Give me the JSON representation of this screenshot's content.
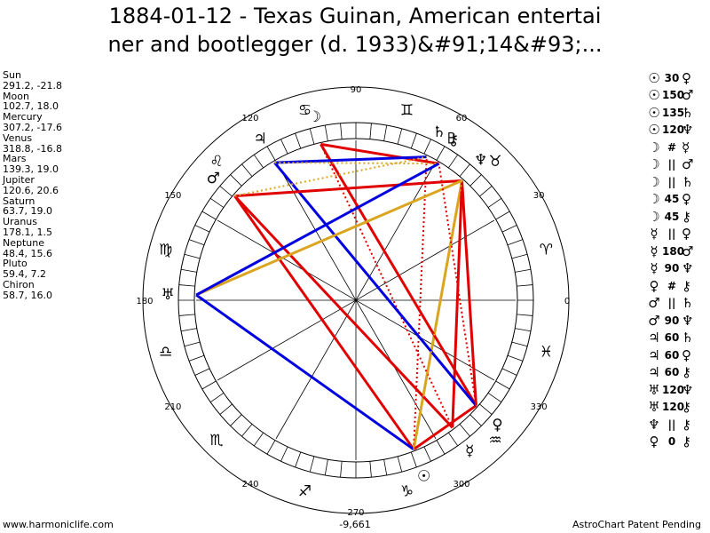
{
  "title": {
    "line1": "1884-01-12 - Texas Guinan, American entertai",
    "line2": "ner and bootlegger (d. 1933)&#91;14&#93;..."
  },
  "positions": [
    {
      "name": "Sun",
      "coords": "291.2, -21.8"
    },
    {
      "name": "Moon",
      "coords": "102.7, 18.0"
    },
    {
      "name": "Mercury",
      "coords": "307.2, -17.6"
    },
    {
      "name": "Venus",
      "coords": "318.8, -16.8"
    },
    {
      "name": "Mars",
      "coords": "139.3, 19.0"
    },
    {
      "name": "Jupiter",
      "coords": "120.6, 20.6"
    },
    {
      "name": "Saturn",
      "coords": "63.7, 19.0"
    },
    {
      "name": "Uranus",
      "coords": "178.1, 1.5"
    },
    {
      "name": "Neptune",
      "coords": "48.4, 15.6"
    },
    {
      "name": "Pluto",
      "coords": "59.4, 7.2"
    },
    {
      "name": "Chiron",
      "coords": "58.7, 16.0"
    }
  ],
  "aspects": [
    {
      "p1": "sun-icon",
      "g1": "☉",
      "type": "30",
      "g2": "♀",
      "p2": "venus-icon"
    },
    {
      "p1": "sun-icon",
      "g1": "☉",
      "type": "150",
      "g2": "♂",
      "p2": "mars-icon"
    },
    {
      "p1": "sun-icon",
      "g1": "☉",
      "type": "135",
      "g2": "♄",
      "p2": "saturn-icon"
    },
    {
      "p1": "sun-icon",
      "g1": "☉",
      "type": "120",
      "g2": "♆",
      "p2": "neptune-icon"
    },
    {
      "p1": "moon-icon",
      "g1": "☽",
      "type": "#",
      "g2": "☿",
      "p2": "mercury-icon"
    },
    {
      "p1": "moon-icon",
      "g1": "☽",
      "type": "||",
      "g2": "♂",
      "p2": "mars-icon"
    },
    {
      "p1": "moon-icon",
      "g1": "☽",
      "type": "||",
      "g2": "♄",
      "p2": "saturn-icon"
    },
    {
      "p1": "moon-icon",
      "g1": "☽",
      "type": "45",
      "g2": "♀",
      "p2": "venus-icon"
    },
    {
      "p1": "moon-icon",
      "g1": "☽",
      "type": "45",
      "g2": "⚷",
      "p2": "chiron-icon"
    },
    {
      "p1": "mercury-icon",
      "g1": "☿",
      "type": "||",
      "g2": "♀",
      "p2": "venus-icon"
    },
    {
      "p1": "mercury-icon",
      "g1": "☿",
      "type": "180",
      "g2": "♂",
      "p2": "mars-icon"
    },
    {
      "p1": "mercury-icon",
      "g1": "☿",
      "type": "90",
      "g2": "♆",
      "p2": "neptune-icon"
    },
    {
      "p1": "venus-icon",
      "g1": "♀",
      "type": "#",
      "g2": "⚷",
      "p2": "chiron-icon"
    },
    {
      "p1": "mars-icon",
      "g1": "♂",
      "type": "||",
      "g2": "♄",
      "p2": "saturn-icon"
    },
    {
      "p1": "mars-icon",
      "g1": "♂",
      "type": "90",
      "g2": "♆",
      "p2": "neptune-icon"
    },
    {
      "p1": "jupiter-icon",
      "g1": "♃",
      "type": "60",
      "g2": "♄",
      "p2": "saturn-icon"
    },
    {
      "p1": "jupiter-icon",
      "g1": "♃",
      "type": "60",
      "g2": "♀",
      "p2": "venus-icon"
    },
    {
      "p1": "jupiter-icon",
      "g1": "♃",
      "type": "60",
      "g2": "⚷",
      "p2": "chiron-icon"
    },
    {
      "p1": "uranus-icon",
      "g1": "♅",
      "type": "120",
      "g2": "♆",
      "p2": "neptune-icon"
    },
    {
      "p1": "uranus-icon",
      "g1": "♅",
      "type": "120",
      "g2": "⚷",
      "p2": "chiron-icon"
    },
    {
      "p1": "neptune-icon",
      "g1": "♆",
      "type": "||",
      "g2": "⚷",
      "p2": "chiron-icon"
    },
    {
      "p1": "venus-icon",
      "g1": "♀",
      "type": "0",
      "g2": "⚷",
      "p2": "chiron-icon"
    }
  ],
  "wheel": {
    "degree_labels": [
      "0",
      "30",
      "60",
      "90",
      "120",
      "150",
      "180",
      "210",
      "240",
      "270",
      "300",
      "330"
    ],
    "zodiac": [
      {
        "name": "aries-icon",
        "glyph": "♈",
        "lon": 15
      },
      {
        "name": "taurus-icon",
        "glyph": "♉",
        "lon": 45
      },
      {
        "name": "gemini-icon",
        "glyph": "♊",
        "lon": 75
      },
      {
        "name": "cancer-icon",
        "glyph": "♋",
        "lon": 105
      },
      {
        "name": "leo-icon",
        "glyph": "♌",
        "lon": 135
      },
      {
        "name": "virgo-icon",
        "glyph": "♍",
        "lon": 165
      },
      {
        "name": "libra-icon",
        "glyph": "♎",
        "lon": 195
      },
      {
        "name": "scorpio-icon",
        "glyph": "♏",
        "lon": 225
      },
      {
        "name": "sagittarius-icon",
        "glyph": "♐",
        "lon": 255
      },
      {
        "name": "capricorn-icon",
        "glyph": "♑",
        "lon": 285
      },
      {
        "name": "aquarius-icon",
        "glyph": "♒",
        "lon": 315
      },
      {
        "name": "pisces-icon",
        "glyph": "♓",
        "lon": 345
      }
    ],
    "planets": [
      {
        "name": "sun-icon",
        "glyph": "☉",
        "lon": 291.2
      },
      {
        "name": "moon-icon",
        "glyph": "☽",
        "lon": 102.7
      },
      {
        "name": "mercury-icon",
        "glyph": "☿",
        "lon": 307.2
      },
      {
        "name": "venus-icon",
        "glyph": "♀",
        "lon": 318.8
      },
      {
        "name": "mars-icon",
        "glyph": "♂",
        "lon": 139.3
      },
      {
        "name": "jupiter-icon",
        "glyph": "♃",
        "lon": 120.6
      },
      {
        "name": "saturn-icon",
        "glyph": "♄",
        "lon": 63.7
      },
      {
        "name": "uranus-icon",
        "glyph": "♅",
        "lon": 178.1
      },
      {
        "name": "neptune-icon",
        "glyph": "♆",
        "lon": 48.4
      },
      {
        "name": "pluto-icon",
        "glyph": "♇",
        "lon": 59.4
      },
      {
        "name": "chiron-icon",
        "glyph": "⚷",
        "lon": 58.7
      }
    ],
    "aspect_lines": [
      {
        "from": 291.2,
        "to": 139.3,
        "color": "#e00000",
        "style": "solid"
      },
      {
        "from": 291.2,
        "to": 48.4,
        "color": "#daa520",
        "style": "solid"
      },
      {
        "from": 291.2,
        "to": 318.8,
        "color": "#e00000",
        "style": "solid"
      },
      {
        "from": 291.2,
        "to": 63.7,
        "color": "#e00000",
        "style": "dotted"
      },
      {
        "from": 291.2,
        "to": 178.1,
        "color": "#0000e0",
        "style": "solid"
      },
      {
        "from": 102.7,
        "to": 307.2,
        "color": "#e00000",
        "style": "dotted"
      },
      {
        "from": 102.7,
        "to": 318.8,
        "color": "#e00000",
        "style": "solid"
      },
      {
        "from": 102.7,
        "to": 58.7,
        "color": "#e00000",
        "style": "solid"
      },
      {
        "from": 307.2,
        "to": 139.3,
        "color": "#e00000",
        "style": "solid"
      },
      {
        "from": 307.2,
        "to": 48.4,
        "color": "#e00000",
        "style": "solid"
      },
      {
        "from": 318.8,
        "to": 120.6,
        "color": "#0000e0",
        "style": "solid"
      },
      {
        "from": 318.8,
        "to": 48.4,
        "color": "#e00000",
        "style": "solid"
      },
      {
        "from": 139.3,
        "to": 48.4,
        "color": "#e00000",
        "style": "solid"
      },
      {
        "from": 120.6,
        "to": 63.7,
        "color": "#0000e0",
        "style": "solid"
      },
      {
        "from": 120.6,
        "to": 58.7,
        "color": "#daa520",
        "style": "dotted"
      },
      {
        "from": 178.1,
        "to": 48.4,
        "color": "#daa520",
        "style": "solid"
      },
      {
        "from": 178.1,
        "to": 58.7,
        "color": "#0000e0",
        "style": "solid"
      },
      {
        "from": 139.3,
        "to": 63.7,
        "color": "#daa520",
        "style": "dotted"
      },
      {
        "from": 48.4,
        "to": 291.2,
        "color": "#daa520",
        "style": "dotted"
      },
      {
        "from": 318.8,
        "to": 58.7,
        "color": "#e00000",
        "style": "dotted"
      }
    ]
  },
  "footer": {
    "left": "www.harmoniclife.com",
    "center": "-9,661",
    "right": "AstroChart Patent Pending"
  }
}
